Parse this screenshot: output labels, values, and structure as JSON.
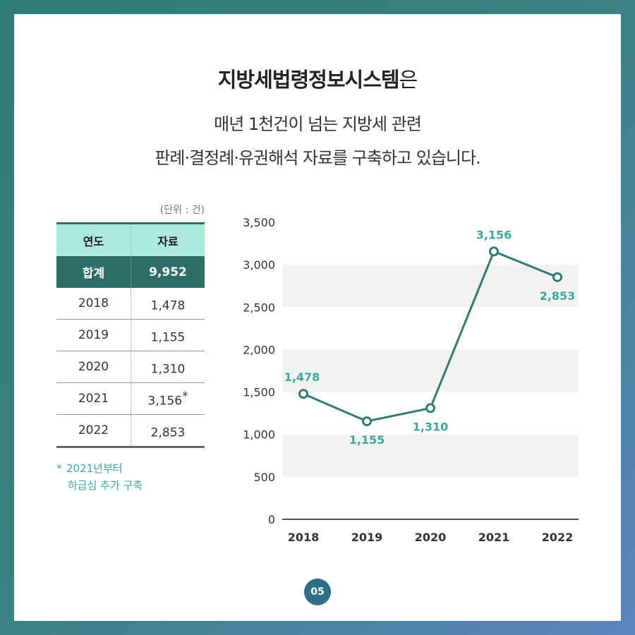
{
  "header": {
    "title_bold": "지방세법령정보시스템",
    "title_rest": "은",
    "line1": "매년 1천건이 넘는 지방세 관련",
    "line2": "판례·결정례·유권해석 자료를 구축하고 있습니다."
  },
  "table": {
    "unit_label": "(단위 : 건)",
    "col_year": "연도",
    "col_count": "자료",
    "total_label": "합계",
    "total_value": "9,952",
    "rows": [
      {
        "year": "2018",
        "value": "1,478",
        "mark": ""
      },
      {
        "year": "2019",
        "value": "1,155",
        "mark": ""
      },
      {
        "year": "2020",
        "value": "1,310",
        "mark": ""
      },
      {
        "year": "2021",
        "value": "3,156",
        "mark": "*"
      },
      {
        "year": "2022",
        "value": "2,853",
        "mark": ""
      }
    ],
    "footnote_star": "*",
    "footnote_line1": "2021년부터",
    "footnote_line2": "하급심 추가 구축"
  },
  "chart_data": {
    "type": "line",
    "x": [
      "2018",
      "2019",
      "2020",
      "2021",
      "2022"
    ],
    "series": [
      {
        "values": [
          1478,
          1155,
          1310,
          3156,
          2853
        ]
      }
    ],
    "data_labels": [
      "1,478",
      "1,155",
      "1,310",
      "3,156",
      "2,853"
    ],
    "y_ticks": [
      0,
      500,
      1000,
      1500,
      2000,
      2500,
      3000,
      3500
    ],
    "y_tick_labels": [
      "0",
      "500",
      "1,000",
      "1,500",
      "2,000",
      "2,500",
      "3,000",
      "3,500"
    ],
    "ylim": [
      0,
      3500
    ],
    "grid": "alternating horizontal bands",
    "colors": {
      "line": "#2f7d72",
      "label": "#3aa89a",
      "band": "#f2f2f2"
    }
  },
  "page_number": "05"
}
